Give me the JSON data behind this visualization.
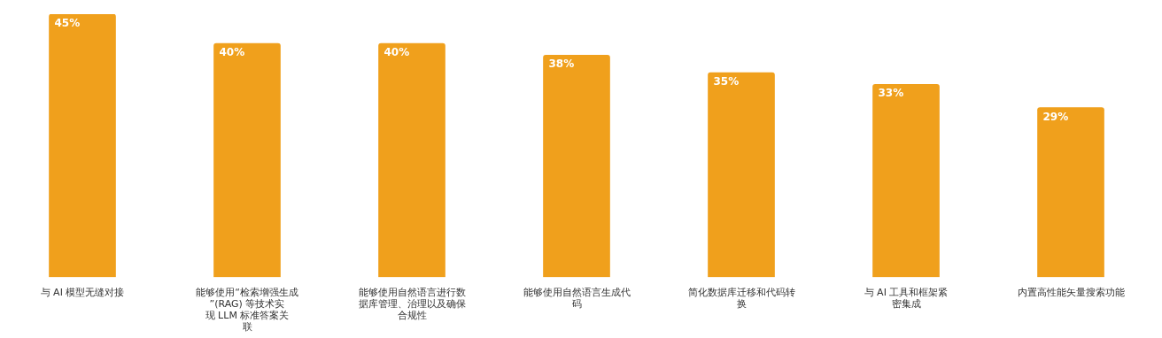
{
  "chart_data": {
    "type": "bar",
    "categories": [
      "与 AI 模型无缝对接",
      "能够使用“检索增强生成”(RAG) 等技术实现 LLM 标准答案关联",
      "能够使用自然语言进行数据库管理、治理以及确保合规性",
      "能够使用自然语言生成代码",
      "简化数据库迁移和代码转换",
      "与 AI 工具和框架紧密集成",
      "内置高性能矢量搜索功能"
    ],
    "values": [
      45,
      40,
      40,
      38,
      35,
      33,
      29
    ],
    "value_labels": [
      "45%",
      "40%",
      "40%",
      "38%",
      "35%",
      "33%",
      "29%"
    ],
    "color": "#f0a01c",
    "grid": false,
    "legend": false
  }
}
